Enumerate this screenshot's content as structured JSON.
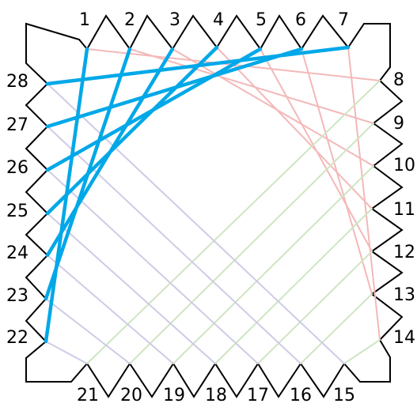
{
  "diagram": {
    "top_numbers": [
      "1",
      "2",
      "3",
      "4",
      "5",
      "6",
      "7"
    ],
    "right_numbers": [
      "8",
      "9",
      "10",
      "11",
      "12",
      "13",
      "14"
    ],
    "bottom_numbers": [
      "15",
      "16",
      "17",
      "18",
      "19",
      "20",
      "21"
    ],
    "left_numbers": [
      "22",
      "23",
      "24",
      "25",
      "26",
      "27",
      "28"
    ],
    "colors": {
      "outline": "#000000",
      "highlight": "#00a8e8",
      "pink": "#f4b8b8",
      "green": "#cfe5c3",
      "lavender": "#cfcbe6"
    },
    "highlight_strings": [
      [
        "1",
        "22"
      ],
      [
        "2",
        "23"
      ],
      [
        "3",
        "24"
      ],
      [
        "4",
        "25"
      ],
      [
        "5",
        "26"
      ],
      [
        "6",
        "27"
      ],
      [
        "7",
        "28"
      ]
    ],
    "pink_strings": [
      [
        "2",
        "9"
      ],
      [
        "3",
        "10"
      ],
      [
        "4",
        "11"
      ],
      [
        "5",
        "12"
      ],
      [
        "6",
        "13"
      ],
      [
        "7",
        "14"
      ],
      [
        "1",
        "8"
      ]
    ],
    "green_strings": [
      [
        "8",
        "21"
      ],
      [
        "9",
        "20"
      ],
      [
        "10",
        "19"
      ],
      [
        "11",
        "18"
      ],
      [
        "12",
        "17"
      ],
      [
        "13",
        "16"
      ],
      [
        "14",
        "15"
      ]
    ],
    "lavender_strings": [
      [
        "28",
        "15"
      ],
      [
        "27",
        "16"
      ],
      [
        "26",
        "17"
      ],
      [
        "25",
        "18"
      ],
      [
        "24",
        "19"
      ],
      [
        "23",
        "20"
      ],
      [
        "22",
        "21"
      ]
    ]
  }
}
